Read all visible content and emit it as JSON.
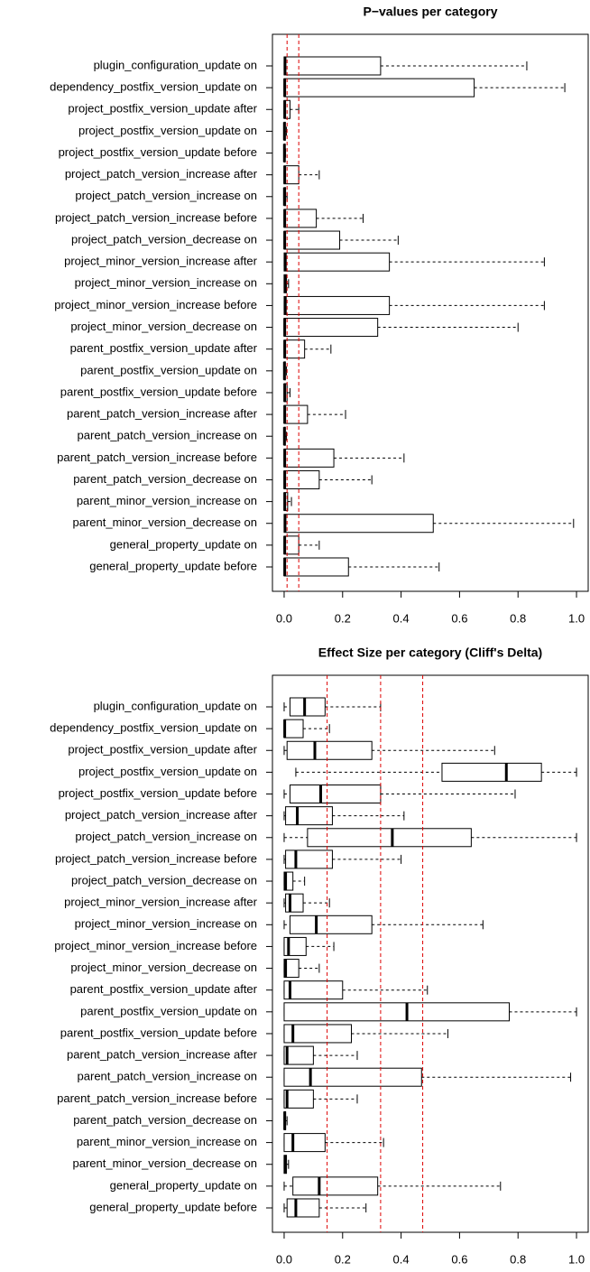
{
  "chart_data": [
    {
      "type": "boxplot",
      "orientation": "horizontal",
      "title": "P−values per category",
      "categories": [
        "plugin_configuration_update on",
        "dependency_postfix_version_update on",
        "project_postfix_version_update after",
        "project_postfix_version_update on",
        "project_postfix_version_update before",
        "project_patch_version_increase after",
        "project_patch_version_increase on",
        "project_patch_version_increase before",
        "project_patch_version_decrease on",
        "project_minor_version_increase after",
        "project_minor_version_increase on",
        "project_minor_version_increase before",
        "project_minor_version_decrease on",
        "parent_postfix_version_update after",
        "parent_postfix_version_update on",
        "parent_postfix_version_update before",
        "parent_patch_version_increase after",
        "parent_patch_version_increase on",
        "parent_patch_version_increase before",
        "parent_patch_version_decrease on",
        "parent_minor_version_increase on",
        "parent_minor_version_decrease on",
        "general_property_update on",
        "general_property_update before"
      ],
      "boxes": [
        [
          0,
          0,
          0.003,
          0.33,
          0.83
        ],
        [
          0,
          0,
          0.002,
          0.65,
          0.96
        ],
        [
          0,
          0,
          0.002,
          0.02,
          0.05
        ],
        [
          0,
          0,
          0.001,
          0.004,
          0.008
        ],
        [
          0,
          0,
          0.001,
          0.003,
          0.005
        ],
        [
          0,
          0,
          0.002,
          0.05,
          0.12
        ],
        [
          0,
          0,
          0.001,
          0.005,
          0.01
        ],
        [
          0,
          0,
          0.002,
          0.11,
          0.27
        ],
        [
          0,
          0,
          0.002,
          0.19,
          0.39
        ],
        [
          0,
          0,
          0.004,
          0.36,
          0.89
        ],
        [
          0,
          0,
          0.003,
          0.008,
          0.015
        ],
        [
          0,
          0,
          0.004,
          0.36,
          0.89
        ],
        [
          0,
          0,
          0.002,
          0.32,
          0.8
        ],
        [
          0,
          0,
          0.002,
          0.07,
          0.16
        ],
        [
          0,
          0,
          0.001,
          0.004,
          0.008
        ],
        [
          0,
          0,
          0.002,
          0.01,
          0.02
        ],
        [
          0,
          0,
          0.002,
          0.08,
          0.21
        ],
        [
          0,
          0,
          0.001,
          0.004,
          0.008
        ],
        [
          0,
          0,
          0.002,
          0.17,
          0.41
        ],
        [
          0,
          0,
          0.002,
          0.12,
          0.3
        ],
        [
          0,
          0,
          0.002,
          0.012,
          0.025
        ],
        [
          0,
          0,
          0.003,
          0.51,
          0.99
        ],
        [
          0,
          0,
          0.002,
          0.05,
          0.12
        ],
        [
          0,
          0,
          0.002,
          0.22,
          0.53
        ]
      ],
      "reference_lines": [
        0.01,
        0.05
      ],
      "reference_color": "#dd0000",
      "xlim": [
        -0.04,
        1.04
      ],
      "xticks": [
        {
          "value": 0,
          "label": "0.0"
        },
        {
          "value": 0.2,
          "label": "0.2"
        },
        {
          "value": 0.4,
          "label": "0.4"
        },
        {
          "value": 0.6,
          "label": "0.6"
        },
        {
          "value": 0.8,
          "label": "0.8"
        },
        {
          "value": 1,
          "label": "1.0"
        }
      ]
    },
    {
      "type": "boxplot",
      "orientation": "horizontal",
      "title": "Effect Size per category (Cliff's Delta)",
      "categories": [
        "plugin_configuration_update on",
        "dependency_postfix_version_update on",
        "project_postfix_version_update after",
        "project_postfix_version_update on",
        "project_postfix_version_update before",
        "project_patch_version_increase after",
        "project_patch_version_increase on",
        "project_patch_version_increase before",
        "project_patch_version_decrease on",
        "project_minor_version_increase after",
        "project_minor_version_increase on",
        "project_minor_version_increase before",
        "project_minor_version_decrease on",
        "parent_postfix_version_update after",
        "parent_postfix_version_update on",
        "parent_postfix_version_update before",
        "parent_patch_version_increase after",
        "parent_patch_version_increase on",
        "parent_patch_version_increase before",
        "parent_patch_version_decrease on",
        "parent_minor_version_increase on",
        "parent_minor_version_decrease on",
        "general_property_update on",
        "general_property_update before"
      ],
      "boxes": [
        [
          0,
          0.02,
          0.07,
          0.14,
          0.33
        ],
        [
          0,
          0,
          0.002,
          0.065,
          0.155
        ],
        [
          0,
          0.01,
          0.105,
          0.3,
          0.72
        ],
        [
          0.04,
          0.54,
          0.76,
          0.88,
          1
        ],
        [
          0,
          0.02,
          0.125,
          0.33,
          0.79
        ],
        [
          0,
          0.005,
          0.045,
          0.165,
          0.41
        ],
        [
          0,
          0.08,
          0.37,
          0.64,
          1
        ],
        [
          0,
          0.005,
          0.04,
          0.165,
          0.4
        ],
        [
          0,
          0,
          0.005,
          0.03,
          0.07
        ],
        [
          0,
          0.005,
          0.02,
          0.065,
          0.155
        ],
        [
          0,
          0.02,
          0.11,
          0.3,
          0.68
        ],
        [
          0,
          0,
          0.015,
          0.075,
          0.17
        ],
        [
          0,
          0,
          0.005,
          0.05,
          0.12
        ],
        [
          0,
          0,
          0.02,
          0.2,
          0.49
        ],
        [
          0,
          0,
          0.42,
          0.77,
          1
        ],
        [
          0,
          0,
          0.03,
          0.23,
          0.56
        ],
        [
          0,
          0,
          0.01,
          0.1,
          0.25
        ],
        [
          0,
          0,
          0.09,
          0.47,
          0.98
        ],
        [
          0,
          0,
          0.01,
          0.1,
          0.25
        ],
        [
          0,
          0,
          0.002,
          0.005,
          0.01
        ],
        [
          0,
          0,
          0.03,
          0.14,
          0.34
        ],
        [
          0,
          0,
          0.003,
          0.008,
          0.015
        ],
        [
          0,
          0.03,
          0.12,
          0.32,
          0.74
        ],
        [
          0,
          0.01,
          0.04,
          0.12,
          0.28
        ]
      ],
      "reference_lines": [
        0.147,
        0.33,
        0.474
      ],
      "reference_color": "#dd0000",
      "xlim": [
        -0.04,
        1.04
      ],
      "xticks": [
        {
          "value": 0,
          "label": "0.0"
        },
        {
          "value": 0.2,
          "label": "0.2"
        },
        {
          "value": 0.4,
          "label": "0.4"
        },
        {
          "value": 0.6,
          "label": "0.6"
        },
        {
          "value": 0.8,
          "label": "0.8"
        },
        {
          "value": 1,
          "label": "1.0"
        }
      ]
    }
  ]
}
